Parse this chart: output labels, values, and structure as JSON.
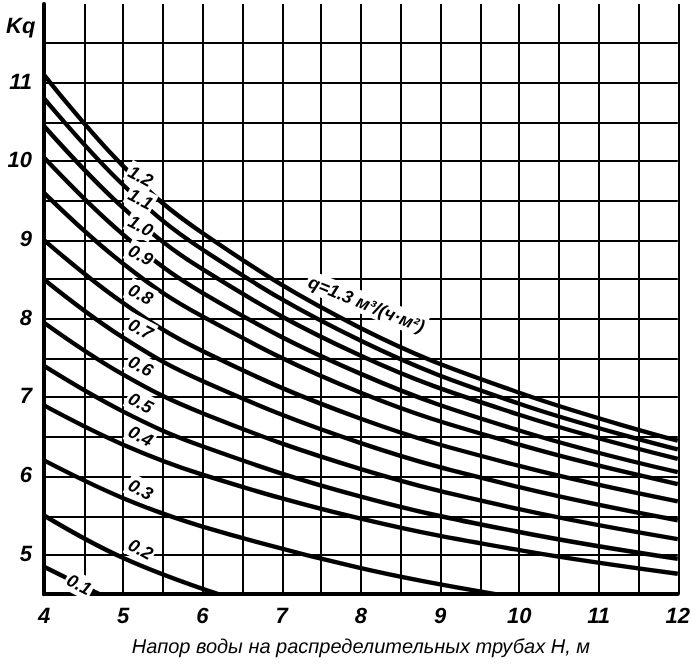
{
  "chart_data": {
    "type": "line",
    "xlabel": "Напор воды на распределительных трубах Н, м",
    "ylabel": "Kq",
    "xlim": [
      4,
      12
    ],
    "ylim": [
      4.5,
      12
    ],
    "xticks": [
      4,
      {
        "value": 4.5,
        "label": null
      },
      5,
      {
        "value": 5.5,
        "label": null
      },
      6,
      {
        "value": 6.5,
        "label": null
      },
      7,
      {
        "value": 7.5,
        "label": null
      },
      8,
      {
        "value": 8.5,
        "label": null
      },
      9,
      {
        "value": 9.5,
        "label": null
      },
      10,
      {
        "value": 10.5,
        "label": null
      },
      11,
      {
        "value": 11.5,
        "label": null
      },
      12
    ],
    "yticks": [
      {
        "value": 4.5,
        "label": null
      },
      5,
      {
        "value": 5.5,
        "label": null
      },
      6,
      {
        "value": 6.5,
        "label": null
      },
      7,
      {
        "value": 7.5,
        "label": null
      },
      8,
      {
        "value": 8.5,
        "label": null
      },
      9,
      {
        "value": 9.5,
        "label": null
      },
      10,
      {
        "value": 10.5,
        "label": null
      },
      11,
      {
        "value": 11.5,
        "label": null
      }
    ],
    "grid": true,
    "marker": "none",
    "line_style": "solid",
    "legend": false,
    "series": [
      {
        "name": "0.1",
        "color": "#000000",
        "x": [
          4,
          4.7
        ],
        "values": [
          4.85,
          4.5
        ]
      },
      {
        "name": "0.2",
        "color": "#000000",
        "x": [
          4,
          5,
          6.2
        ],
        "values": [
          5.5,
          4.96,
          4.5
        ]
      },
      {
        "name": "0.3",
        "color": "#000000",
        "x": [
          4,
          5,
          6,
          8,
          9.7
        ],
        "values": [
          6.2,
          5.72,
          5.36,
          4.83,
          4.5
        ]
      },
      {
        "name": "0.4",
        "color": "#000000",
        "x": [
          4,
          5,
          6,
          8,
          10,
          12
        ],
        "values": [
          6.9,
          6.4,
          6.02,
          5.46,
          5.06,
          4.76
        ]
      },
      {
        "name": "0.5",
        "color": "#000000",
        "x": [
          4,
          5,
          6,
          8,
          10,
          12
        ],
        "values": [
          7.4,
          6.82,
          6.38,
          5.74,
          5.29,
          4.95
        ]
      },
      {
        "name": "0.6",
        "color": "#000000",
        "x": [
          4,
          5,
          6,
          8,
          10,
          12
        ],
        "values": [
          7.95,
          7.29,
          6.8,
          6.09,
          5.58,
          5.2
        ]
      },
      {
        "name": "0.7",
        "color": "#000000",
        "x": [
          4,
          5,
          6,
          8,
          10,
          12
        ],
        "values": [
          8.5,
          7.76,
          7.21,
          6.42,
          5.86,
          5.44
        ]
      },
      {
        "name": "0.8",
        "color": "#000000",
        "x": [
          4,
          5,
          6,
          8,
          10,
          12
        ],
        "values": [
          9.0,
          8.2,
          7.59,
          6.73,
          6.13,
          5.68
        ]
      },
      {
        "name": "0.9",
        "color": "#000000",
        "x": [
          4,
          5,
          6,
          8,
          10,
          12
        ],
        "values": [
          9.6,
          8.7,
          8.03,
          7.06,
          6.4,
          5.9
        ]
      },
      {
        "name": "1.0",
        "color": "#000000",
        "x": [
          4,
          5,
          6,
          8,
          10,
          12
        ],
        "values": [
          10.05,
          9.07,
          8.33,
          7.3,
          6.58,
          6.05
        ]
      },
      {
        "name": "1.1",
        "color": "#000000",
        "x": [
          4,
          5,
          6,
          8,
          10,
          12
        ],
        "values": [
          10.45,
          9.41,
          8.63,
          7.53,
          6.78,
          6.22
        ]
      },
      {
        "name": "1.2",
        "color": "#000000",
        "x": [
          4,
          5,
          6,
          8,
          10,
          12
        ],
        "values": [
          10.8,
          9.7,
          8.88,
          7.72,
          6.92,
          6.34
        ]
      },
      {
        "name": "q=1.3 м³/(ч·м²)",
        "color": "#000000",
        "x": [
          4,
          5,
          6,
          8,
          10,
          12
        ],
        "values": [
          11.1,
          9.94,
          9.09,
          7.88,
          7.06,
          6.45
        ]
      }
    ]
  }
}
